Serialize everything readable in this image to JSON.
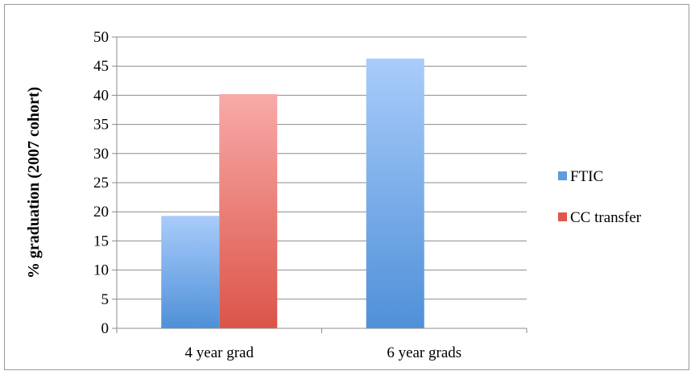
{
  "chart_data": {
    "type": "bar",
    "title": "",
    "xlabel": "",
    "ylabel": "% graduation (2007 cohort)",
    "categories": [
      "4 year grad",
      "6 year grads"
    ],
    "series": [
      {
        "name": "FTIC",
        "values": [
          19.3,
          46.3
        ],
        "color_top": "#a9ccfb",
        "color_bottom": "#4f90d8",
        "legend_color": "#5b9be0"
      },
      {
        "name": "CC transfer",
        "values": [
          40.2,
          null
        ],
        "color_top": "#f8aaa8",
        "color_bottom": "#dc5448",
        "legend_color": "#e0574b"
      }
    ],
    "ylim": [
      0,
      50
    ],
    "yticks": [
      0,
      5,
      10,
      15,
      20,
      25,
      30,
      35,
      40,
      45,
      50
    ],
    "grid": true,
    "legend_position": "right",
    "gridline_color": "#8c8c8c"
  }
}
